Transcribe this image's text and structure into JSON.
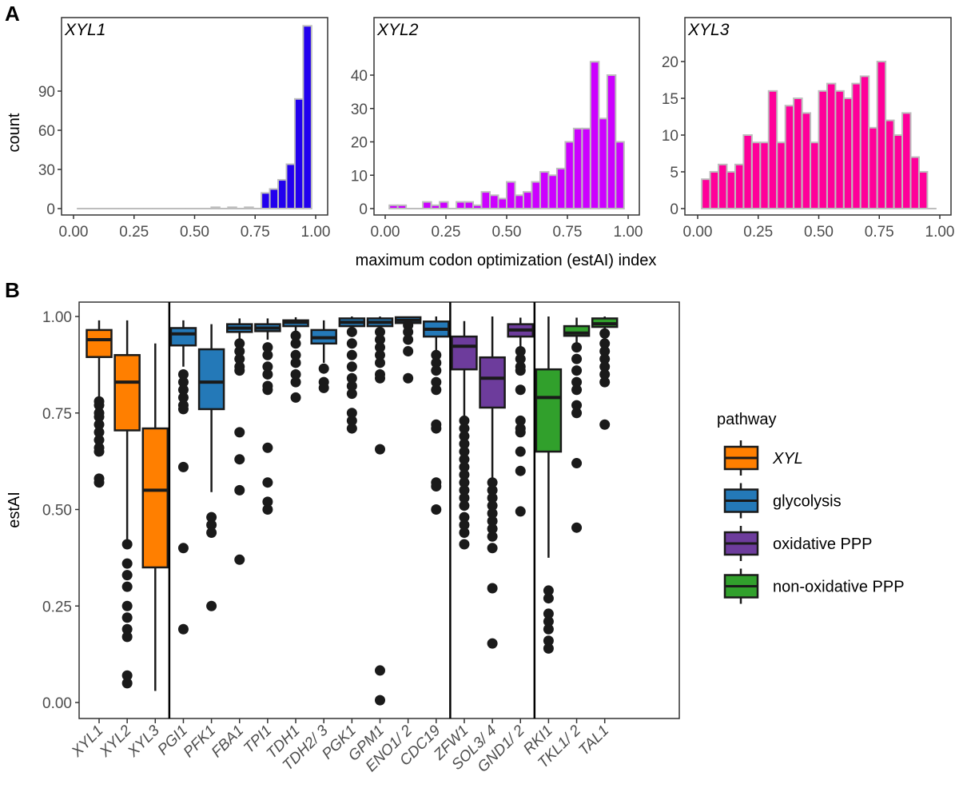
{
  "chart_data": [
    {
      "panel": "A",
      "type": "bar",
      "subtype": "histogram",
      "xlabel": "maximum codon optimization (estAI) index",
      "ylabel": "count",
      "bin_start": 0.017,
      "bin_width": 0.0345,
      "xlim": [
        0,
        1
      ],
      "xticks": [
        "0.00",
        "0.25",
        "0.50",
        "0.75",
        "1.00"
      ],
      "grid": false,
      "bar_outline_color": "#bdbdbd",
      "facets": [
        {
          "name": "XYL1",
          "color": "#2200ee",
          "ylim": [
            0,
            145
          ],
          "yticks": [
            0,
            30,
            60,
            90
          ],
          "values": [
            0,
            0,
            0,
            0,
            0,
            0,
            0,
            0,
            0,
            0,
            0,
            0,
            0,
            0,
            0,
            0,
            1,
            0,
            1,
            0,
            1,
            0,
            12,
            15,
            22,
            34,
            84,
            140
          ]
        },
        {
          "name": "XYL2",
          "color": "#cc00ff",
          "ylim": [
            0,
            48
          ],
          "yticks": [
            0,
            10,
            20,
            30,
            40
          ],
          "values": [
            1,
            1,
            0,
            0,
            2,
            1,
            2,
            0,
            2,
            2,
            1,
            5,
            4,
            3,
            8,
            4,
            5,
            8,
            11,
            10,
            12,
            20,
            24,
            24,
            44,
            27,
            40,
            20
          ]
        },
        {
          "name": "XYL3",
          "color": "#ff0099",
          "ylim": [
            0,
            23
          ],
          "yticks": [
            0,
            5,
            10,
            15,
            20
          ],
          "values": [
            4,
            5,
            6,
            5,
            6,
            10,
            9,
            9,
            16,
            9,
            14,
            15,
            13,
            9,
            16,
            17,
            16,
            15,
            17,
            18,
            11,
            20,
            12,
            10,
            13,
            7,
            5,
            0
          ]
        }
      ]
    },
    {
      "panel": "B",
      "type": "box",
      "ylabel": "estAI",
      "ylim": [
        0,
        1
      ],
      "yticks": [
        "0.00",
        "0.25",
        "0.50",
        "0.75",
        "1.00"
      ],
      "grid": false,
      "legend": {
        "title": "pathway",
        "position": "right",
        "entries": [
          {
            "key": "XYL",
            "label": "XYL",
            "color": "#ff7f00",
            "italic": true
          },
          {
            "key": "glycolysis",
            "label": "glycolysis",
            "color": "#2479b8",
            "italic": false
          },
          {
            "key": "oxidative",
            "label": "oxidative PPP",
            "color": "#6d3c9c",
            "italic": false
          },
          {
            "key": "nonox",
            "label": "non-oxidative PPP",
            "color": "#31a02c",
            "italic": false
          }
        ]
      },
      "group_separators_after": [
        "XYL3",
        "CDC19",
        "GND1/2"
      ],
      "boxes": [
        {
          "gene": "XYL1",
          "label": "XYL1",
          "pathway": "XYL",
          "lower": 0.79,
          "q1": 0.895,
          "median": 0.94,
          "q3": 0.965,
          "upper": 0.99,
          "outliers": [
            0.78,
            0.77,
            0.75,
            0.74,
            0.72,
            0.7,
            0.68,
            0.66,
            0.65,
            0.58,
            0.57
          ]
        },
        {
          "gene": "XYL2",
          "label": "XYL2",
          "pathway": "XYL",
          "lower": 0.42,
          "q1": 0.705,
          "median": 0.83,
          "q3": 0.9,
          "upper": 0.99,
          "outliers": [
            0.41,
            0.36,
            0.33,
            0.3,
            0.25,
            0.22,
            0.19,
            0.17,
            0.07,
            0.05
          ]
        },
        {
          "gene": "XYL3",
          "label": "XYL3",
          "pathway": "XYL",
          "lower": 0.03,
          "q1": 0.35,
          "median": 0.55,
          "q3": 0.71,
          "upper": 0.93,
          "outliers": []
        },
        {
          "gene": "PGI1",
          "label": "PGI1",
          "pathway": "glycolysis",
          "lower": 0.87,
          "q1": 0.925,
          "median": 0.955,
          "q3": 0.97,
          "upper": 0.99,
          "outliers": [
            0.85,
            0.83,
            0.81,
            0.79,
            0.77,
            0.76,
            0.61,
            0.4,
            0.19
          ]
        },
        {
          "gene": "PFK1",
          "label": "PFK1",
          "pathway": "glycolysis",
          "lower": 0.545,
          "q1": 0.76,
          "median": 0.83,
          "q3": 0.915,
          "upper": 0.98,
          "outliers": [
            0.48,
            0.46,
            0.44,
            0.25
          ]
        },
        {
          "gene": "FBA1",
          "label": "FBA1",
          "pathway": "glycolysis",
          "lower": 0.94,
          "q1": 0.96,
          "median": 0.97,
          "q3": 0.98,
          "upper": 0.995,
          "outliers": [
            0.93,
            0.91,
            0.89,
            0.87,
            0.86,
            0.7,
            0.63,
            0.55,
            0.37
          ]
        },
        {
          "gene": "TPI1",
          "label": "TPI1",
          "pathway": "glycolysis",
          "lower": 0.94,
          "q1": 0.962,
          "median": 0.97,
          "q3": 0.98,
          "upper": 0.995,
          "outliers": [
            0.92,
            0.9,
            0.87,
            0.85,
            0.82,
            0.81,
            0.66,
            0.57,
            0.52,
            0.5
          ]
        },
        {
          "gene": "TDH1",
          "label": "TDH1",
          "pathway": "glycolysis",
          "lower": 0.96,
          "q1": 0.975,
          "median": 0.985,
          "q3": 0.99,
          "upper": 0.998,
          "outliers": [
            0.95,
            0.93,
            0.9,
            0.88,
            0.85,
            0.83,
            0.79
          ]
        },
        {
          "gene": "TDH2/3",
          "label": "TDH2/ 3",
          "pathway": "glycolysis",
          "lower": 0.88,
          "q1": 0.93,
          "median": 0.945,
          "q3": 0.965,
          "upper": 0.99,
          "outliers": [
            0.865,
            0.83,
            0.815
          ]
        },
        {
          "gene": "PGK1",
          "label": "PGK1",
          "pathway": "glycolysis",
          "lower": 0.965,
          "q1": 0.975,
          "median": 0.985,
          "q3": 0.995,
          "upper": 1.0,
          "outliers": [
            0.96,
            0.93,
            0.9,
            0.87,
            0.84,
            0.82,
            0.8,
            0.75,
            0.73,
            0.71
          ]
        },
        {
          "gene": "GPM1",
          "label": "GPM1",
          "pathway": "glycolysis",
          "lower": 0.965,
          "q1": 0.975,
          "median": 0.985,
          "q3": 0.995,
          "upper": 1.0,
          "outliers": [
            0.96,
            0.94,
            0.92,
            0.9,
            0.88,
            0.85,
            0.84,
            0.656,
            0.083,
            0.006
          ]
        },
        {
          "gene": "ENO1/2",
          "label": "ENO1/ 2",
          "pathway": "glycolysis",
          "lower": 0.98,
          "q1": 0.983,
          "median": 0.99,
          "q3": 0.998,
          "upper": 1.0,
          "outliers": [
            0.977,
            0.96,
            0.94,
            0.91,
            0.84
          ]
        },
        {
          "gene": "CDC19",
          "label": "CDC19",
          "pathway": "glycolysis",
          "lower": 0.91,
          "q1": 0.948,
          "median": 0.967,
          "q3": 0.987,
          "upper": 1.0,
          "outliers": [
            0.9,
            0.88,
            0.86,
            0.83,
            0.81,
            0.72,
            0.71,
            0.57,
            0.56,
            0.5
          ]
        },
        {
          "gene": "ZFW1",
          "label": "ZFW1",
          "pathway": "oxidative",
          "lower": 0.74,
          "q1": 0.863,
          "median": 0.923,
          "q3": 0.948,
          "upper": 0.988,
          "outliers": [
            0.73,
            0.71,
            0.69,
            0.67,
            0.65,
            0.63,
            0.61,
            0.59,
            0.57,
            0.55,
            0.53,
            0.51,
            0.48,
            0.46,
            0.44,
            0.41
          ]
        },
        {
          "gene": "SOL3/4",
          "label": "SOL3/ 4",
          "pathway": "oxidative",
          "lower": 0.58,
          "q1": 0.764,
          "median": 0.84,
          "q3": 0.894,
          "upper": 1.0,
          "outliers": [
            0.57,
            0.55,
            0.53,
            0.51,
            0.49,
            0.47,
            0.45,
            0.43,
            0.4,
            0.296,
            0.153
          ]
        },
        {
          "gene": "GND1/2",
          "label": "GND1/ 2",
          "pathway": "oxidative",
          "lower": 0.92,
          "q1": 0.948,
          "median": 0.965,
          "q3": 0.98,
          "upper": 0.997,
          "outliers": [
            0.91,
            0.89,
            0.87,
            0.86,
            0.81,
            0.73,
            0.71,
            0.7,
            0.65,
            0.6,
            0.495
          ]
        },
        {
          "gene": "RKI1",
          "label": "RKI1",
          "pathway": "nonox",
          "lower": 0.375,
          "q1": 0.65,
          "median": 0.79,
          "q3": 0.863,
          "upper": 1.0,
          "outliers": [
            0.29,
            0.27,
            0.23,
            0.21,
            0.19,
            0.16,
            0.14
          ]
        },
        {
          "gene": "TKL1/2",
          "label": "TKL1/ 2",
          "pathway": "nonox",
          "lower": 0.93,
          "q1": 0.95,
          "median": 0.957,
          "q3": 0.975,
          "upper": 0.997,
          "outliers": [
            0.92,
            0.89,
            0.86,
            0.83,
            0.81,
            0.77,
            0.75,
            0.62,
            0.453
          ]
        },
        {
          "gene": "TAL1",
          "label": "TAL1",
          "pathway": "nonox",
          "lower": 0.96,
          "q1": 0.973,
          "median": 0.981,
          "q3": 0.995,
          "upper": 1.0,
          "outliers": [
            0.956,
            0.93,
            0.91,
            0.89,
            0.87,
            0.85,
            0.83,
            0.72
          ]
        }
      ]
    }
  ]
}
